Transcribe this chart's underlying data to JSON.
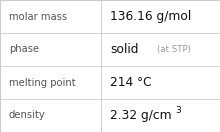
{
  "rows": [
    {
      "label": "molar mass",
      "value": "136.16 g/mol",
      "value_extra": null,
      "superscript": false
    },
    {
      "label": "phase",
      "value": "solid",
      "value_extra": "(at STP)",
      "superscript": false
    },
    {
      "label": "melting point",
      "value": "214 °C",
      "value_extra": null,
      "superscript": false
    },
    {
      "label": "density",
      "value": "2.32 g/cm",
      "value_extra": "3",
      "superscript": true
    }
  ],
  "bg_color": "#ffffff",
  "border_color": "#cccccc",
  "label_color": "#555555",
  "value_color": "#111111",
  "extra_color": "#999999",
  "col_split": 0.46,
  "label_fontsize": 7.2,
  "value_fontsize": 8.8,
  "extra_fontsize": 6.2,
  "super_fontsize": 6.5
}
